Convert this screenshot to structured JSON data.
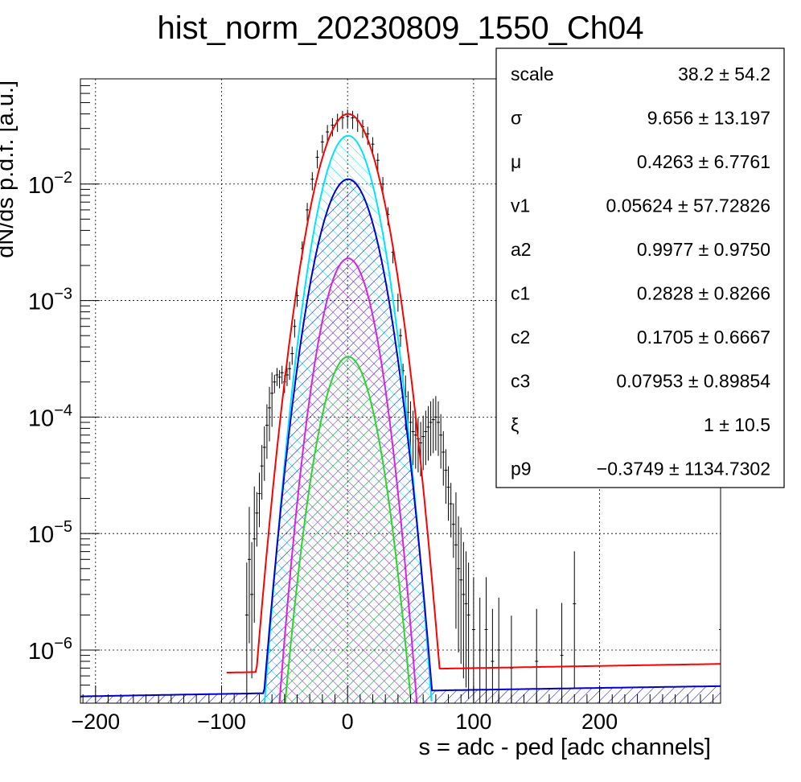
{
  "chart_data": {
    "type": "histogram",
    "title": "hist_norm_20230809_1550_Ch04",
    "xlabel": "s = adc - ped [adc channels]",
    "ylabel": "dN/ds p.d.f. [a.u.]",
    "xlim": [
      -212,
      296
    ],
    "ylim": [
      3.5e-07,
      0.08
    ],
    "yscale": "log",
    "grid": true,
    "x_ticks": [
      {
        "value": -200,
        "label": "−200"
      },
      {
        "value": -100,
        "label": "−100"
      },
      {
        "value": 0,
        "label": "0"
      },
      {
        "value": 100,
        "label": "100"
      },
      {
        "value": 200,
        "label": "200"
      }
    ],
    "y_ticks": [
      {
        "value": 1e-06,
        "base": "10",
        "exp": "−6"
      },
      {
        "value": 1e-05,
        "base": "10",
        "exp": "−5"
      },
      {
        "value": 0.0001,
        "base": "10",
        "exp": "−4"
      },
      {
        "value": 0.001,
        "base": "10",
        "exp": "−3"
      },
      {
        "value": 0.01,
        "base": "10",
        "exp": "−2"
      }
    ],
    "histogram": {
      "color": "#000000",
      "points": [
        [
          -80,
          2e-06
        ],
        [
          -78,
          6e-06
        ],
        [
          -76,
          3e-06
        ],
        [
          -74,
          9e-06
        ],
        [
          -72,
          1.5e-05
        ],
        [
          -70,
          2.2e-05
        ],
        [
          -68,
          3.8e-05
        ],
        [
          -66,
          5.5e-05
        ],
        [
          -64,
          8.5e-05
        ],
        [
          -62,
          0.00012
        ],
        [
          -60,
          0.00016
        ],
        [
          -58,
          0.0002
        ],
        [
          -56,
          0.00023
        ],
        [
          -54,
          0.00022
        ],
        [
          -52,
          0.00024
        ],
        [
          -50,
          0.0002
        ],
        [
          -48,
          0.00023
        ],
        [
          -46,
          0.00026
        ],
        [
          -44,
          0.00035
        ],
        [
          -42,
          0.0006
        ],
        [
          -40,
          0.0011
        ],
        [
          -36,
          0.0028
        ],
        [
          -32,
          0.006
        ],
        [
          -28,
          0.011
        ],
        [
          -24,
          0.017
        ],
        [
          -20,
          0.023
        ],
        [
          -16,
          0.028
        ],
        [
          -12,
          0.032
        ],
        [
          -8,
          0.035
        ],
        [
          -4,
          0.037
        ],
        [
          0,
          0.038
        ],
        [
          4,
          0.037
        ],
        [
          8,
          0.035
        ],
        [
          12,
          0.031
        ],
        [
          16,
          0.027
        ],
        [
          20,
          0.022
        ],
        [
          24,
          0.016
        ],
        [
          28,
          0.01
        ],
        [
          32,
          0.0055
        ],
        [
          36,
          0.0026
        ],
        [
          40,
          0.001
        ],
        [
          42,
          0.0005
        ],
        [
          44,
          0.00025
        ],
        [
          46,
          0.00015
        ],
        [
          48,
          0.00011
        ],
        [
          50,
          9e-05
        ],
        [
          52,
          7.5e-05
        ],
        [
          54,
          7e-05
        ],
        [
          56,
          6.5e-05
        ],
        [
          58,
          6e-05
        ],
        [
          60,
          6.8e-05
        ],
        [
          62,
          7.5e-05
        ],
        [
          64,
          8.2e-05
        ],
        [
          66,
          9e-05
        ],
        [
          68,
          9.5e-05
        ],
        [
          70,
          0.0001
        ],
        [
          72,
          9e-05
        ],
        [
          74,
          7e-05
        ],
        [
          76,
          5e-05
        ],
        [
          78,
          3.5e-05
        ],
        [
          80,
          2.5e-05
        ],
        [
          82,
          1.8e-05
        ],
        [
          84,
          1.2e-05
        ],
        [
          86,
          8e-06
        ],
        [
          88,
          5e-06
        ],
        [
          90,
          4e-06
        ],
        [
          92,
          3e-06
        ],
        [
          94,
          2.5e-06
        ],
        [
          96,
          2e-06
        ],
        [
          100,
          1.5e-06
        ],
        [
          105,
          1e-06
        ],
        [
          110,
          1.5e-06
        ],
        [
          115,
          8e-07
        ],
        [
          120,
          1e-06
        ],
        [
          130,
          7e-07
        ],
        [
          150,
          8e-07
        ],
        [
          170,
          9e-07
        ],
        [
          180,
          2.5e-06
        ],
        [
          296,
          1.5e-06
        ]
      ]
    },
    "curves": [
      {
        "color": "#ff0000",
        "amplitude": 0.04,
        "mean": 0.4263,
        "sigma": 15.5,
        "x_start": -96,
        "baseline": [
          6.4e-07,
          7.6e-07
        ],
        "hatched": false
      },
      {
        "color": "#00e5ff",
        "amplitude": 0.026,
        "mean": 0.4263,
        "sigma": 14.0,
        "x_start": null,
        "baseline": null,
        "hatched": true
      },
      {
        "color": "#0000d0",
        "amplitude": 0.011,
        "mean": 0.4263,
        "sigma": 14.8,
        "x_start": -212,
        "baseline": [
          4e-07,
          4.9e-07
        ],
        "hatched": true
      },
      {
        "color": "#e020e0",
        "amplitude": 0.0023,
        "mean": 0.4263,
        "sigma": 13.0,
        "x_start": null,
        "baseline": null,
        "hatched": true
      },
      {
        "color": "#22dd22",
        "amplitude": 0.00033,
        "mean": 0.4263,
        "sigma": 13.5,
        "x_start": null,
        "baseline": null,
        "hatched": true
      }
    ],
    "stats": [
      {
        "name": "scale",
        "value": "38.2 ± 54.2"
      },
      {
        "name": "σ",
        "value": "9.656 ± 13.197"
      },
      {
        "name": "μ",
        "value": "0.4263 ± 6.7761"
      },
      {
        "name": "v1",
        "value": "0.05624 ± 57.72826"
      },
      {
        "name": "a2",
        "value": "0.9977 ± 0.9750"
      },
      {
        "name": "c1",
        "value": "0.2828 ± 0.8266"
      },
      {
        "name": "c2",
        "value": "0.1705 ± 0.6667"
      },
      {
        "name": "c3",
        "value": "0.07953 ± 0.89854"
      },
      {
        "name": "ξ",
        "value": "1 ± 10.5"
      },
      {
        "name": "p9",
        "value": "−0.3749 ± 1134.7302"
      }
    ]
  }
}
